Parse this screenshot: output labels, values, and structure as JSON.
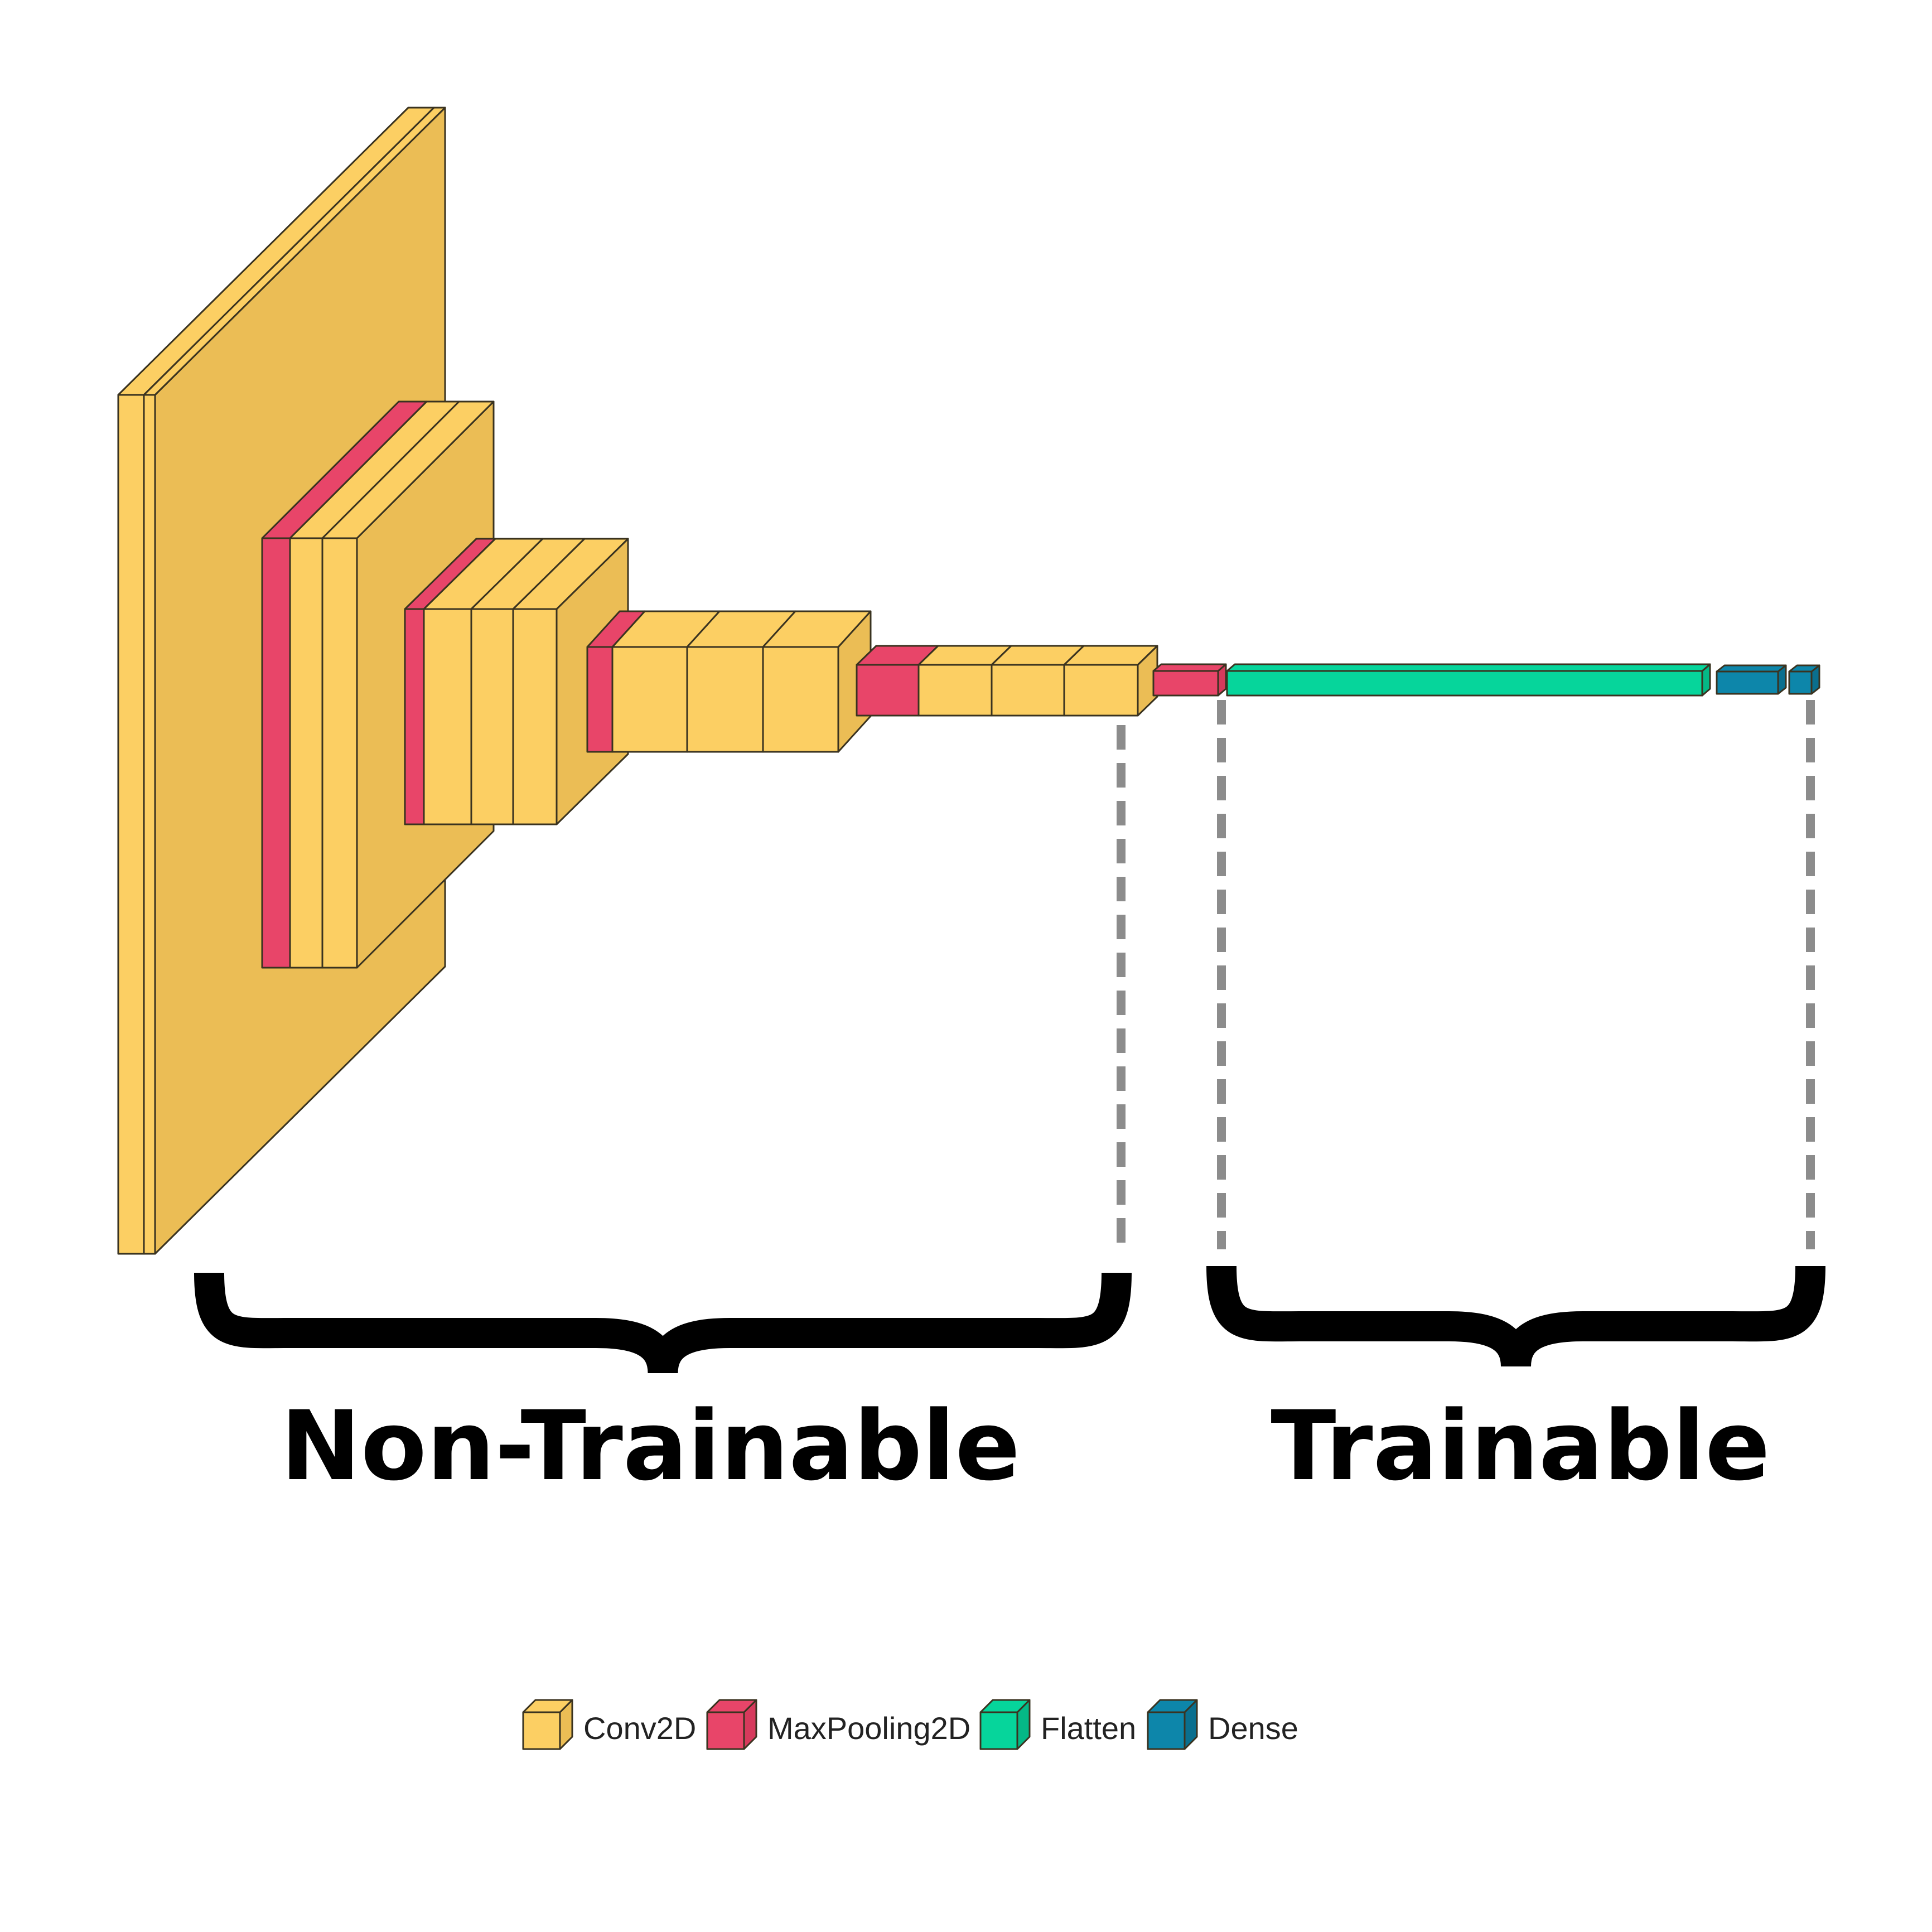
{
  "colors": {
    "conv2d": "#FCCF63",
    "conv2d_side": "#EBBD55",
    "maxpooling2d": "#E84569",
    "maxpooling2d_side": "#D63A5C",
    "flatten": "#06D59B",
    "flatten_side": "#05B886",
    "dense": "#0D86AA",
    "dense_side": "#0A6F8E",
    "bracket": "#000000",
    "guide": "#8C8C8C"
  },
  "groups": {
    "non_trainable": "Non-Trainable",
    "trainable": "Trainable"
  },
  "legend": [
    {
      "key": "conv2d",
      "label": "Conv2D",
      "color": "#FCCF63"
    },
    {
      "key": "maxpooling2d",
      "label": "MaxPooling2D",
      "color": "#E84569"
    },
    {
      "key": "flatten",
      "label": "Flatten",
      "color": "#06D59B"
    },
    {
      "key": "dense",
      "label": "Dense",
      "color": "#0D86AA"
    }
  ],
  "layers": [
    "Conv2D",
    "Conv2D",
    "MaxPooling2D",
    "Conv2D",
    "Conv2D",
    "MaxPooling2D",
    "Conv2D",
    "Conv2D",
    "Conv2D",
    "MaxPooling2D",
    "Conv2D",
    "Conv2D",
    "Conv2D",
    "MaxPooling2D",
    "Conv2D",
    "Conv2D",
    "Conv2D",
    "MaxPooling2D",
    "Flatten",
    "Dense",
    "Dense"
  ]
}
